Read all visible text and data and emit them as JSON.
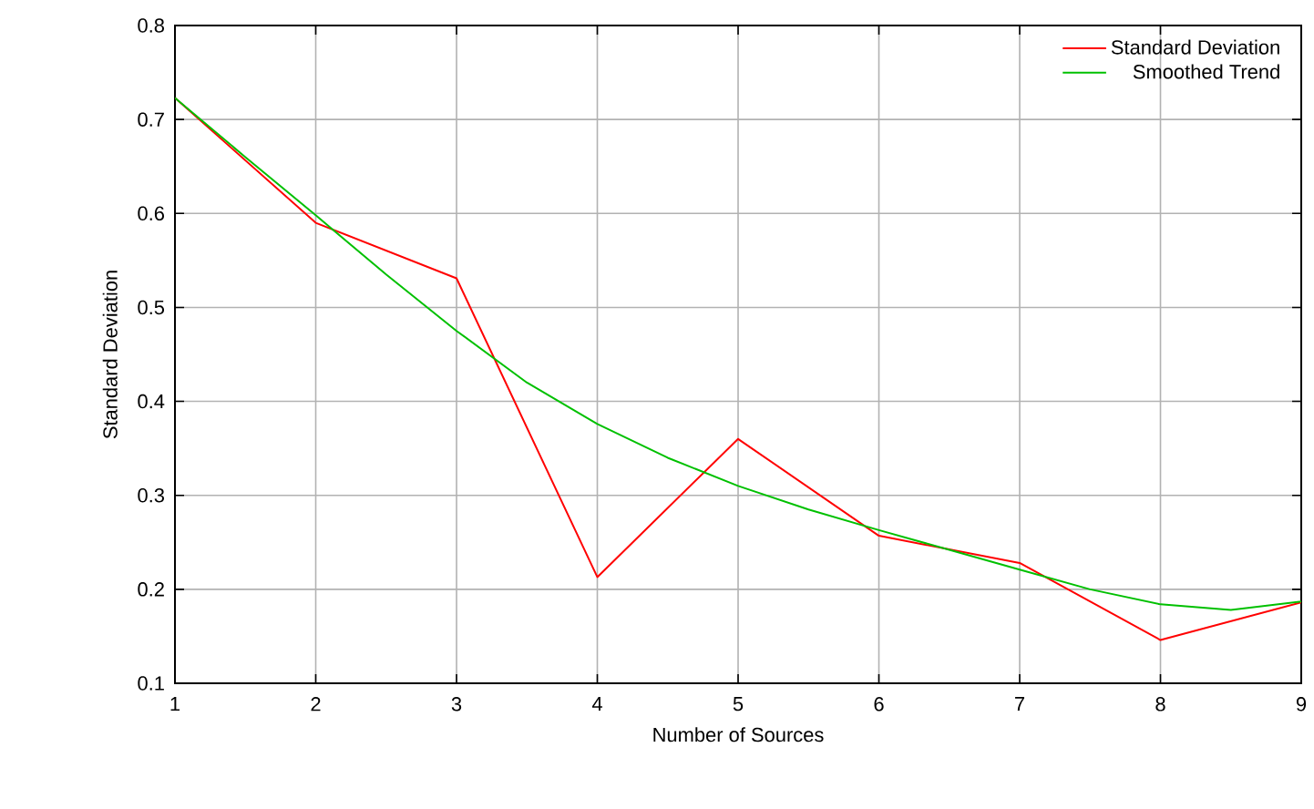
{
  "chart_data": {
    "type": "line",
    "xlabel": "Number of Sources",
    "ylabel": "Standard Deviation",
    "xlim": [
      1,
      9
    ],
    "ylim": [
      0.1,
      0.8
    ],
    "xticks": [
      1,
      2,
      3,
      4,
      5,
      6,
      7,
      8,
      9
    ],
    "yticks": [
      0.1,
      0.2,
      0.3,
      0.4,
      0.5,
      0.6,
      0.7,
      0.8
    ],
    "grid": true,
    "legend": "top right",
    "marker": "none",
    "line_style": "solid",
    "series": [
      {
        "name": "Standard Deviation",
        "color": "#ff0000",
        "x": [
          1,
          2,
          3,
          4,
          5,
          6,
          7,
          8,
          9
        ],
        "values": [
          0.723,
          0.59,
          0.531,
          0.213,
          0.36,
          0.257,
          0.228,
          0.146,
          0.186
        ]
      },
      {
        "name": "Smoothed Trend",
        "color": "#00c000",
        "x": [
          1,
          1.5,
          2,
          2.5,
          3,
          3.5,
          4,
          4.5,
          5,
          5.5,
          6,
          6.5,
          7,
          7.5,
          8,
          8.5,
          9
        ],
        "values": [
          0.723,
          0.66,
          0.598,
          0.535,
          0.475,
          0.42,
          0.376,
          0.34,
          0.31,
          0.285,
          0.263,
          0.242,
          0.221,
          0.2,
          0.184,
          0.178,
          0.187
        ]
      }
    ]
  }
}
